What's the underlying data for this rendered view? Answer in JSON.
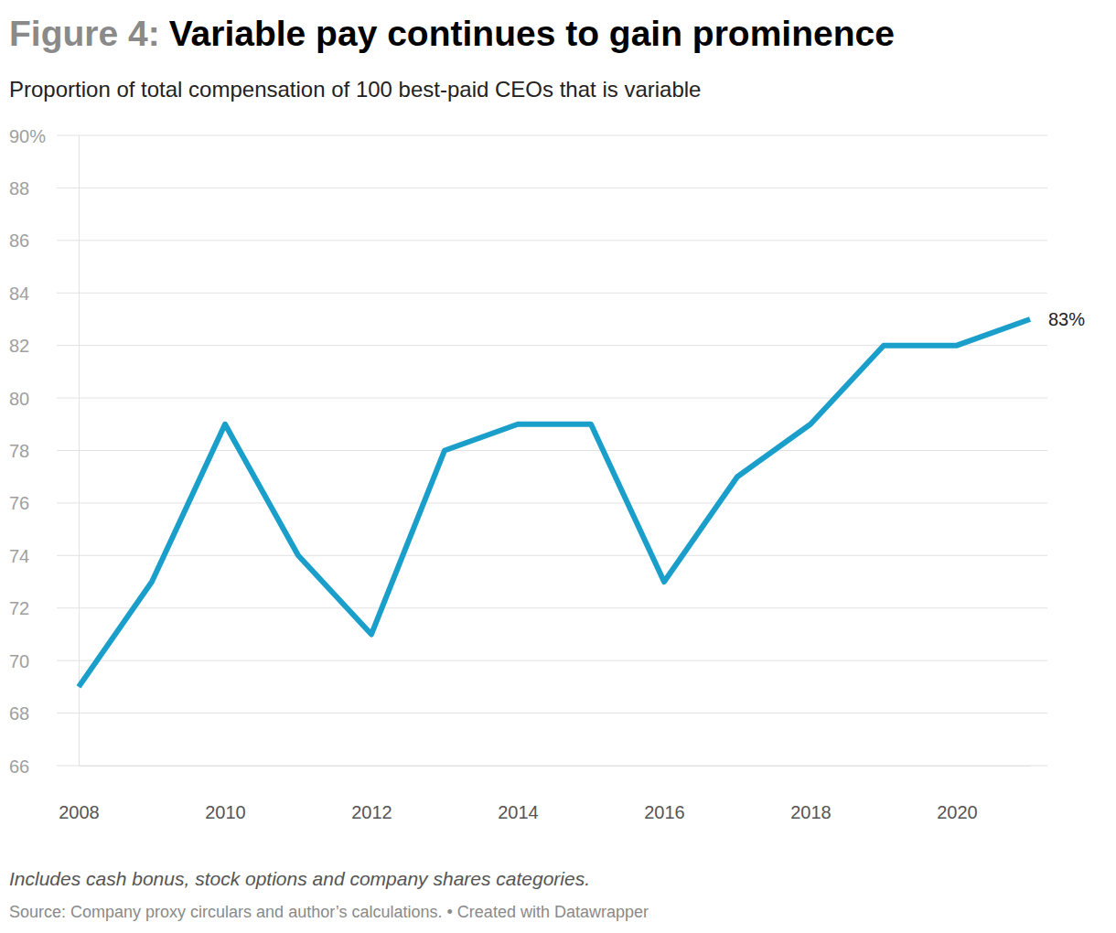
{
  "chart_data": {
    "type": "line",
    "title_label": "Figure 4:",
    "title": "Variable pay continues to gain prominence",
    "subtitle": "Proportion of total compensation of 100 best-paid CEOs that is variable",
    "note": "Includes cash bonus, stock options and company shares categories.",
    "source": "Source: Company proxy circulars and author’s calculations. • Created with Datawrapper",
    "x": [
      2008,
      2009,
      2010,
      2011,
      2012,
      2013,
      2014,
      2015,
      2016,
      2017,
      2018,
      2019,
      2020,
      2021
    ],
    "values": [
      69,
      73,
      79,
      74,
      71,
      78,
      79,
      79,
      73,
      77,
      79,
      82,
      82,
      83
    ],
    "value_labels": [
      null,
      null,
      null,
      null,
      null,
      null,
      null,
      null,
      null,
      null,
      null,
      null,
      null,
      "83%"
    ],
    "color": "#1a9fcb",
    "xlim": [
      2008,
      2021
    ],
    "xticks": [
      2008,
      2010,
      2012,
      2014,
      2016,
      2018,
      2020
    ],
    "ylim": [
      66,
      90
    ],
    "yticks": [
      66,
      68,
      70,
      72,
      74,
      76,
      78,
      80,
      82,
      84,
      86,
      88,
      {
        "value": 90,
        "label": "90%"
      }
    ],
    "grid": true
  }
}
